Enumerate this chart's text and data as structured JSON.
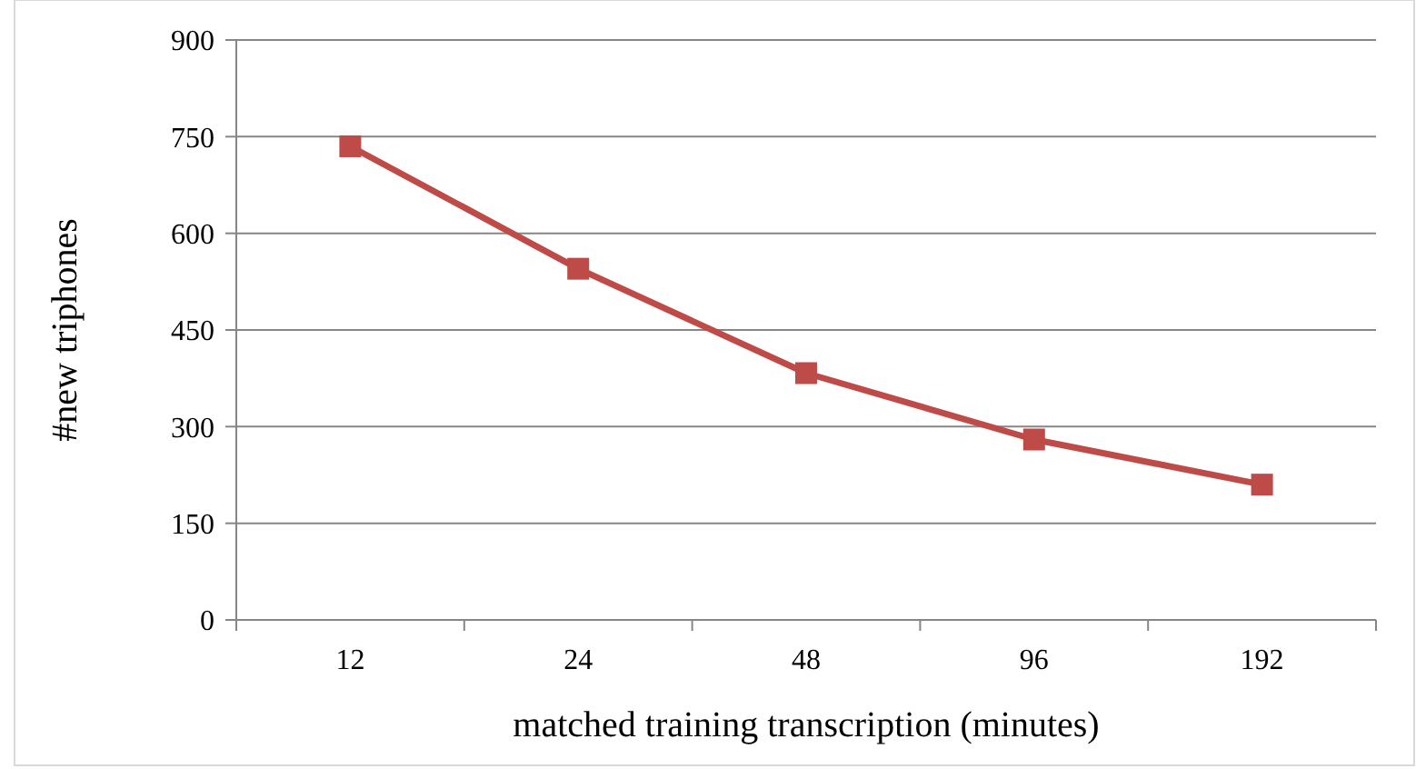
{
  "chart_data": {
    "type": "line",
    "xlabel": "matched training transcription (minutes)",
    "ylabel": "#new triphones",
    "categories": [
      "12",
      "24",
      "48",
      "96",
      "192"
    ],
    "series": [
      {
        "color": "#be4b48",
        "values": [
          735,
          545,
          383,
          280,
          210
        ]
      }
    ],
    "ylim": [
      0,
      900
    ],
    "yticks": [
      0,
      150,
      300,
      450,
      600,
      750,
      900
    ],
    "grid": "y",
    "marker": "square"
  }
}
